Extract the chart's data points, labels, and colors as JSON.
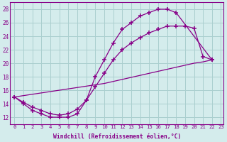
{
  "background_color": "#d4ecec",
  "grid_color": "#aacfcf",
  "line_color": "#880088",
  "xlabel": "Windchill (Refroidissement éolien,°C)",
  "xlim_min": -0.5,
  "xlim_max": 23.3,
  "ylim_min": 11.0,
  "ylim_max": 29.0,
  "yticks": [
    12,
    14,
    16,
    18,
    20,
    22,
    24,
    26,
    28
  ],
  "xticks": [
    0,
    1,
    2,
    3,
    4,
    5,
    6,
    7,
    8,
    9,
    10,
    11,
    12,
    13,
    14,
    15,
    16,
    17,
    18,
    19,
    20,
    21,
    22,
    23
  ],
  "curve1_x": [
    0,
    1,
    2,
    3,
    4,
    5,
    6,
    7,
    8,
    9,
    10,
    11,
    12,
    13,
    14,
    15,
    16,
    17,
    18,
    22
  ],
  "curve1_y": [
    15,
    14,
    13,
    12.5,
    12,
    12,
    12,
    12.5,
    14.5,
    18,
    20.5,
    23,
    25,
    26,
    27,
    27.5,
    28,
    28,
    27.5,
    20.5
  ],
  "curve2_x": [
    0,
    1,
    2,
    3,
    4,
    5,
    6,
    7,
    8,
    9,
    10,
    11,
    12,
    13,
    14,
    15,
    16,
    17,
    18,
    19,
    20,
    21,
    22
  ],
  "curve2_y": [
    15,
    15.2,
    15.4,
    15.6,
    15.8,
    16.0,
    16.2,
    16.4,
    16.6,
    16.8,
    17.0,
    17.3,
    17.6,
    17.9,
    18.2,
    18.5,
    18.8,
    19.1,
    19.4,
    19.7,
    20.0,
    20.2,
    20.5
  ],
  "curve3_x": [
    0,
    1,
    2,
    3,
    4,
    5,
    6,
    7,
    8,
    9,
    10,
    11,
    12,
    13,
    14,
    15,
    16,
    17,
    18,
    19,
    20,
    21,
    22
  ],
  "curve3_y": [
    15,
    14.2,
    13.5,
    13.0,
    12.5,
    12.3,
    12.5,
    13.2,
    14.5,
    16.5,
    18.5,
    20.5,
    22.0,
    23.0,
    23.8,
    24.5,
    25.0,
    25.5,
    25.5,
    25.5,
    25.2,
    21.0,
    20.5
  ]
}
